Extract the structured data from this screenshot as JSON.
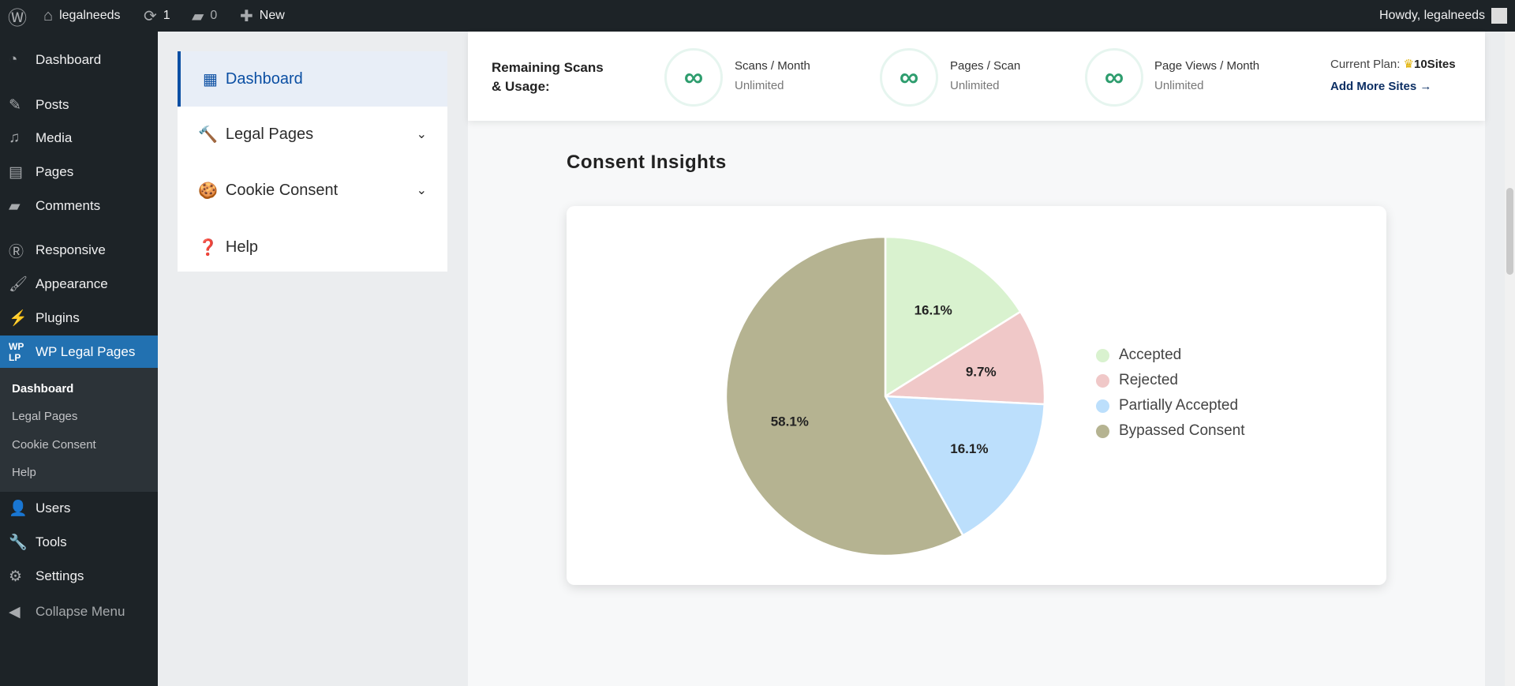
{
  "topbar": {
    "site": "legalneeds",
    "updates": "1",
    "comments": "0",
    "new": "New",
    "howdy": "Howdy, legalneeds"
  },
  "sidebar": {
    "items": [
      "Dashboard",
      "Posts",
      "Media",
      "Pages",
      "Comments",
      "Responsive",
      "Appearance",
      "Plugins",
      "WP Legal Pages",
      "Users",
      "Tools",
      "Settings",
      "Collapse Menu"
    ],
    "submenu": [
      "Dashboard",
      "Legal Pages",
      "Cookie Consent",
      "Help"
    ]
  },
  "plugin_nav": [
    "Dashboard",
    "Legal Pages",
    "Cookie Consent",
    "Help"
  ],
  "usage": {
    "label_1": "Remaining Scans",
    "label_2": "& Usage:",
    "stats": [
      {
        "label": "Scans / Month",
        "value": "Unlimited"
      },
      {
        "label": "Pages / Scan",
        "value": "Unlimited"
      },
      {
        "label": "Page Views / Month",
        "value": "Unlimited"
      }
    ],
    "plan_label": "Current Plan:",
    "plan": "10Sites",
    "add_more": "Add More Sites"
  },
  "section_title": "Consent Insights",
  "chart_data": {
    "type": "pie",
    "categories": [
      "Accepted",
      "Rejected",
      "Partially Accepted",
      "Bypassed Consent"
    ],
    "values": [
      16.1,
      9.7,
      16.1,
      58.1
    ],
    "labels": [
      "16.1%",
      "9.7%",
      "16.1%",
      "58.1%"
    ],
    "colors": [
      "#d9f2cf",
      "#f0c8c8",
      "#bcdffc",
      "#b5b391"
    ],
    "legend": "right"
  }
}
